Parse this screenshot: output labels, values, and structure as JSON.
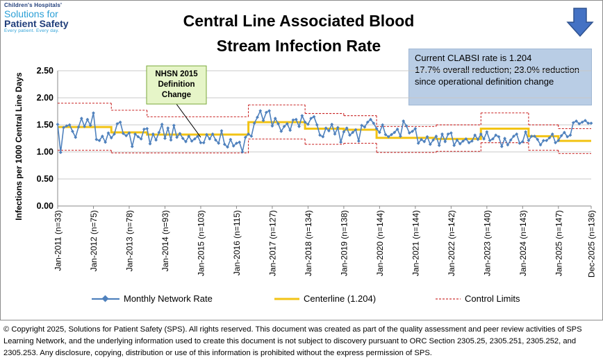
{
  "logo": {
    "line1": "Children's Hospitals'",
    "line2": "Solutions for",
    "line3": "Patient Safety",
    "tagline": "Every patient. Every day."
  },
  "title_line1": "Central Line Associated Blood",
  "title_line2": "Stream Infection Rate",
  "callout": {
    "line1": "Current CLABSI rate is 1.204",
    "line2": "17.7% overall reduction; 23.0% reduction since operational definition change"
  },
  "annotation": {
    "text_line1": "NHSN 2015",
    "text_line2": "Definition",
    "text_line3": "Change",
    "points_to_x": "Jan-2015 (n=103)"
  },
  "legend": {
    "series": "Monthly Network Rate",
    "centerline": "Centerline (1.204)",
    "limits": "Control Limits"
  },
  "footer": "© Copyright 2025, Solutions for Patient Safety (SPS). All rights reserved. This document was created as part of the quality assessment and peer review activities of SPS Learning Network, and the underlying information used to create this document is not subject to discovery pursuant to ORC Section 2305.25, 2305.251, 2305.252, and 2305.253. Any disclosure, copying, distribution or use of this information is prohibited without the express permission of SPS.",
  "colors": {
    "series": "#4f81bd",
    "centerline": "#f2c314",
    "limits": "#c00000",
    "callout_bg": "#b9cde5",
    "annotation_bg": "#e6f5c8",
    "arrow": "#4472c4"
  },
  "chart_data": {
    "type": "line",
    "ylabel": "Infections per 1000 Central Line Days",
    "ylim": [
      0,
      2.5
    ],
    "yticks": [
      "0.00",
      "0.50",
      "1.00",
      "1.50",
      "2.00",
      "2.50"
    ],
    "xtick_labels": [
      "Jan-2011 (n=33)",
      "Jan-2012 (n=75)",
      "Jan-2013 (n=78)",
      "Jan-2014 (n=93)",
      "Jan-2015 (n=103)",
      "Jan-2016 (n=115)",
      "Jan-2017 (n=127)",
      "Jan-2018 (n=134)",
      "Jan-2019 (n=138)",
      "Jan-2020 (n=144)",
      "Jan-2021 (n=144)",
      "Jan-2022 (n=142)",
      "Jan-2023 (n=140)",
      "Jan-2024 (n=143)",
      "Jan-2025 (n=147)",
      "Dec-2025 (n=136)"
    ],
    "grid": "horizontal",
    "legend_position": "bottom",
    "month_count": 180,
    "series": [
      {
        "name": "Monthly Network Rate",
        "values": [
          1.51,
          0.99,
          1.45,
          1.48,
          1.5,
          1.38,
          1.27,
          1.46,
          1.62,
          1.47,
          1.6,
          1.49,
          1.72,
          1.23,
          1.21,
          1.29,
          1.18,
          1.35,
          1.26,
          1.33,
          1.52,
          1.55,
          1.34,
          1.3,
          1.35,
          1.1,
          1.33,
          1.28,
          1.24,
          1.42,
          1.43,
          1.15,
          1.33,
          1.22,
          1.36,
          1.51,
          1.25,
          1.44,
          1.22,
          1.49,
          1.27,
          1.34,
          1.25,
          1.19,
          1.29,
          1.2,
          1.24,
          1.29,
          1.17,
          1.17,
          1.32,
          1.24,
          1.33,
          1.22,
          1.16,
          1.39,
          1.14,
          1.09,
          1.23,
          1.11,
          1.16,
          1.18,
          1.0,
          1.27,
          1.33,
          1.29,
          1.53,
          1.64,
          1.76,
          1.58,
          1.73,
          1.76,
          1.48,
          1.62,
          1.52,
          1.38,
          1.47,
          1.52,
          1.4,
          1.59,
          1.6,
          1.47,
          1.67,
          1.55,
          1.51,
          1.62,
          1.65,
          1.5,
          1.31,
          1.28,
          1.44,
          1.39,
          1.51,
          1.33,
          1.45,
          1.18,
          1.37,
          1.44,
          1.31,
          1.36,
          1.41,
          1.2,
          1.49,
          1.46,
          1.55,
          1.6,
          1.53,
          1.43,
          1.36,
          1.5,
          1.32,
          1.28,
          1.32,
          1.36,
          1.42,
          1.29,
          1.57,
          1.48,
          1.35,
          1.38,
          1.43,
          1.16,
          1.23,
          1.19,
          1.28,
          1.14,
          1.22,
          1.29,
          1.12,
          1.33,
          1.19,
          1.33,
          1.35,
          1.12,
          1.22,
          1.15,
          1.2,
          1.24,
          1.17,
          1.2,
          1.31,
          1.23,
          1.33,
          1.24,
          1.37,
          1.21,
          1.24,
          1.31,
          1.28,
          1.1,
          1.25,
          1.13,
          1.22,
          1.29,
          1.33,
          1.16,
          1.19,
          1.37,
          1.21,
          1.29,
          1.29,
          1.23,
          1.13,
          1.21,
          1.21,
          1.26,
          1.33,
          1.17,
          1.21,
          1.3,
          1.36,
          1.28,
          1.31,
          1.54,
          1.57,
          1.52,
          1.55,
          1.58,
          1.53,
          1.53
        ]
      }
    ],
    "centerline_segments": [
      {
        "start": 0,
        "end": 66,
        "value": 1.46
      },
      {
        "start": 0,
        "end": 0,
        "value": 1.46
      }
    ],
    "centerline_label": "Centerline (1.204)",
    "centerline_steps": [
      {
        "start": 0,
        "end": 18,
        "value": 1.46
      },
      {
        "start": 18,
        "end": 30,
        "value": 1.36
      },
      {
        "start": 30,
        "end": 64,
        "value": 1.32
      },
      {
        "start": 64,
        "end": 83,
        "value": 1.55
      },
      {
        "start": 83,
        "end": 96,
        "value": 1.43
      },
      {
        "start": 96,
        "end": 107,
        "value": 1.41
      },
      {
        "start": 107,
        "end": 127,
        "value": 1.26
      },
      {
        "start": 127,
        "end": 142,
        "value": 1.24
      },
      {
        "start": 142,
        "end": 158,
        "value": 1.43
      },
      {
        "start": 158,
        "end": 168,
        "value": 1.29
      },
      {
        "start": 168,
        "end": 179,
        "value": 1.204
      }
    ],
    "control_limits": [
      {
        "start": 0,
        "end": 18,
        "upper": 1.9,
        "lower": 1.03
      },
      {
        "start": 18,
        "end": 30,
        "upper": 1.77,
        "lower": 0.98
      },
      {
        "start": 30,
        "end": 64,
        "upper": 1.65,
        "lower": 0.98
      },
      {
        "start": 64,
        "end": 83,
        "upper": 1.87,
        "lower": 1.24
      },
      {
        "start": 83,
        "end": 96,
        "upper": 1.71,
        "lower": 1.14
      },
      {
        "start": 96,
        "end": 107,
        "upper": 1.67,
        "lower": 1.16
      },
      {
        "start": 107,
        "end": 127,
        "upper": 1.47,
        "lower": 0.99
      },
      {
        "start": 127,
        "end": 142,
        "upper": 1.5,
        "lower": 1.01
      },
      {
        "start": 142,
        "end": 158,
        "upper": 1.72,
        "lower": 1.17
      },
      {
        "start": 158,
        "end": 168,
        "upper": 1.5,
        "lower": 1.03
      },
      {
        "start": 168,
        "end": 179,
        "upper": 1.43,
        "lower": 0.97
      }
    ]
  }
}
